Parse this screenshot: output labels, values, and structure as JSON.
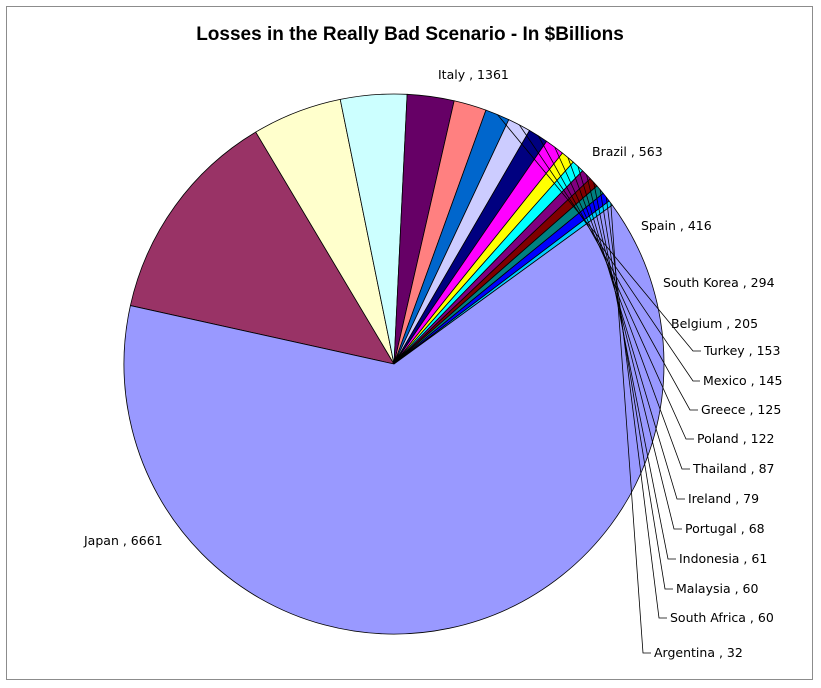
{
  "chart_data": {
    "type": "pie",
    "title": "Losses in the Really Bad Scenario - In $Billions",
    "slices": [
      {
        "label": "Italy",
        "value": 1361,
        "color": "#993366"
      },
      {
        "label": "Brazil",
        "value": 563,
        "color": "#FFFFCC"
      },
      {
        "label": "Spain",
        "value": 416,
        "color": "#CCFFFF"
      },
      {
        "label": "South Korea",
        "value": 294,
        "color": "#660066"
      },
      {
        "label": "Belgium",
        "value": 205,
        "color": "#FF8080"
      },
      {
        "label": "Turkey",
        "value": 153,
        "color": "#0066CC"
      },
      {
        "label": "Mexico",
        "value": 145,
        "color": "#CCCCFF"
      },
      {
        "label": "Greece",
        "value": 125,
        "color": "#000080"
      },
      {
        "label": "Poland",
        "value": 122,
        "color": "#FF00FF"
      },
      {
        "label": "Thailand",
        "value": 87,
        "color": "#FFFF00"
      },
      {
        "label": "Ireland",
        "value": 79,
        "color": "#00FFFF"
      },
      {
        "label": "Portugal",
        "value": 68,
        "color": "#800080"
      },
      {
        "label": "Indonesia",
        "value": 61,
        "color": "#800000"
      },
      {
        "label": "Malaysia",
        "value": 60,
        "color": "#008080"
      },
      {
        "label": "South Africa",
        "value": 60,
        "color": "#0000FF"
      },
      {
        "label": "Argentina",
        "value": 32,
        "color": "#00CCFF"
      },
      {
        "label": "Japan",
        "value": 6661,
        "color": "#9999FF"
      }
    ],
    "label_format": "{label} , {value}",
    "legend": "none"
  }
}
